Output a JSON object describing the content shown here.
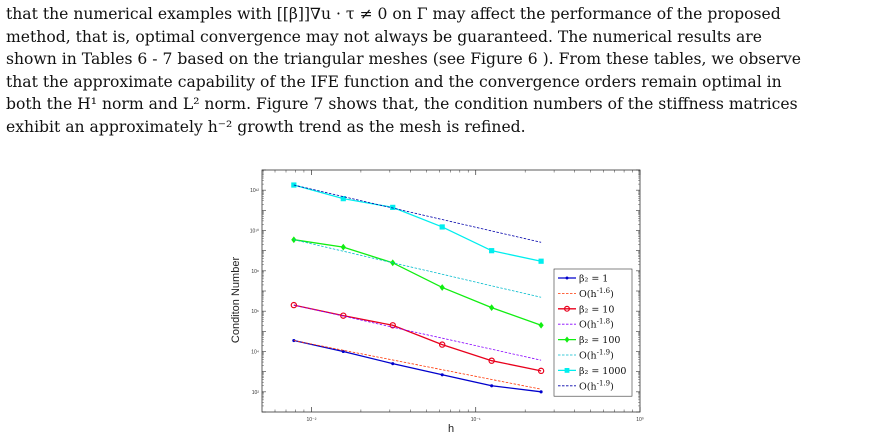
{
  "paragraph": {
    "lines": [
      "that the numerical examples with [[β]]∇u · τ ≠ 0 on Γ may affect the performance of the proposed",
      "method, that is, optimal convergence may not always be guaranteed.  The numerical results are",
      "shown in Tables 6 - 7 based on the triangular meshes (see Figure 6 ). From these tables, we observe",
      "that the approximate capability of the IFE function and the convergence orders remain optimal in",
      "both the H¹ norm and L² norm. Figure 7 shows that, the condition numbers of the stiffness matrices",
      "exhibit an approximately h⁻² growth trend as the mesh is refined."
    ]
  },
  "chart_data": {
    "type": "line",
    "xlabel": "h",
    "ylabel": "Conditon Number",
    "x_scale": "log",
    "y_scale": "log",
    "xlim": [
      0.005,
      1
    ],
    "ylim": [
      10,
      10000000000000.0
    ],
    "x_ticks": [
      0.01,
      0.1,
      1
    ],
    "x_tick_labels": [
      "10⁻²",
      "10⁻¹",
      "10⁰"
    ],
    "y_ticks": [
      100,
      10000,
      1000000,
      100000000,
      10000000000,
      1000000000000
    ],
    "y_tick_labels": [
      "10²",
      "10⁴",
      "10⁶",
      "10⁸",
      "10¹⁰",
      "10¹²"
    ],
    "x": [
      0.0078125,
      0.015625,
      0.03125,
      0.0625,
      0.125,
      0.25
    ],
    "series": [
      {
        "name": "β₂ = 1",
        "values": [
          35000.0,
          10000.0,
          2500.0,
          700.0,
          200.0,
          100.0
        ],
        "color": "#0000cc",
        "marker": "dot",
        "style": "solid"
      },
      {
        "name": "O(h^{-1.6})",
        "values": [
          35000.0,
          11500.0,
          3800.0,
          1250.0,
          410.0,
          135.0
        ],
        "color": "#ff3300",
        "style": "dashed"
      },
      {
        "name": "β₂ = 10",
        "values": [
          2000000.0,
          600000.0,
          200000.0,
          22000.0,
          3500.0,
          1100.0
        ],
        "color": "#e8001c",
        "marker": "circle",
        "style": "solid"
      },
      {
        "name": "O(h^{-1.8})",
        "values": [
          2000000.0,
          570000.0,
          160000.0,
          46000.0,
          13000.0,
          3700.0
        ],
        "color": "#8800ff",
        "style": "dashed"
      },
      {
        "name": "β₂ = 100",
        "values": [
          3500000000.0,
          1500000000.0,
          250000000.0,
          15000000.0,
          1500000.0,
          200000.0
        ],
        "color": "#11ee11",
        "marker": "diamond",
        "style": "solid"
      },
      {
        "name": "O(h^{-1.9})",
        "values": [
          3500000000.0,
          940000000.0,
          250000000.0,
          68000000.0,
          18000000.0,
          4900000.0
        ],
        "color": "#00bbcc",
        "style": "dashed"
      },
      {
        "name": "β₂ = 1000",
        "values": [
          1800000000000.0,
          380000000000.0,
          140000000000.0,
          15000000000.0,
          1000000000.0,
          300000000.0
        ],
        "color": "#00eeee",
        "marker": "square",
        "style": "solid"
      },
      {
        "name": "O(h^{-1.9})",
        "values": [
          1800000000000.0,
          480000000000.0,
          130000000000.0,
          35000000000.0,
          9500000000.0,
          2600000000.0
        ],
        "color": "#0000aa",
        "style": "dashed"
      }
    ],
    "legend_position": "right",
    "grid": false
  }
}
